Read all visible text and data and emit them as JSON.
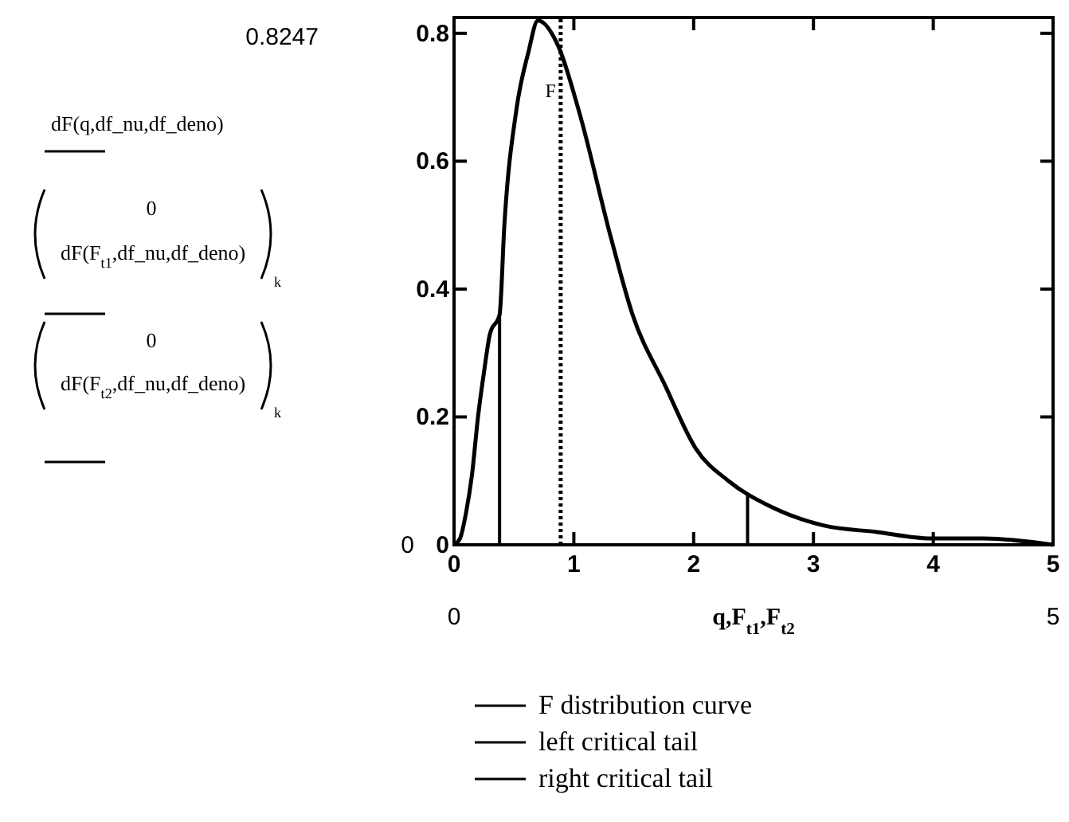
{
  "chart_data": {
    "type": "line",
    "xlabel": "q,F$_{t1}$,F$_{t2}$",
    "ylabel": "dF(q,df_nu,df_deno)\n0\ndF(F$_{t1}$,df_nu,df_deno)\t$_{k}$\n0\ndF(F$_{t2}$,df_nu,df_deno)\t$_{k}$",
    "xlim": [
      0,
      5
    ],
    "ylim": [
      0,
      0.8247
    ],
    "xticks": [
      0,
      1,
      2,
      3,
      4,
      5
    ],
    "yticks": [
      0,
      0.2,
      0.4,
      0.6,
      0.8
    ],
    "grid": false,
    "legend": "bottom",
    "line_style": "solid",
    "marker": "none",
    "series": [
      {
        "name": "F distribution curve",
        "color": "#000000",
        "x": [
          0,
          0.05,
          0.1,
          0.15,
          0.2,
          0.25,
          0.3,
          0.38,
          0.42,
          0.52,
          0.62,
          0.7,
          0.87,
          1.04,
          1.31,
          1.49,
          1.76,
          2.02,
          2.29,
          2.64,
          3.09,
          3.53,
          3.98,
          4.42,
          5
        ],
        "values": [
          0,
          0.01,
          0.05,
          0.11,
          0.2,
          0.27,
          0.33,
          0.36,
          0.5,
          0.68,
          0.77,
          0.82,
          0.78,
          0.68,
          0.48,
          0.36,
          0.25,
          0.15,
          0.1,
          0.06,
          0.03,
          0.02,
          0.01,
          0.01,
          0
        ]
      },
      {
        "name": "left critical tail",
        "color": "#000000",
        "x": [
          0.38,
          0.38
        ],
        "values": [
          0,
          0.36
        ]
      },
      {
        "name": "right critical tail",
        "color": "#000000",
        "x": [
          2.45,
          2.45
        ],
        "values": [
          0,
          0.08
        ]
      }
    ],
    "ref_lines": [
      {
        "axis": "x",
        "value": 0.89,
        "label": "F",
        "line_style": "dotted",
        "color": "#000000"
      }
    ],
    "annotations": [
      "0.8247",
      "0",
      "0",
      "5"
    ]
  }
}
